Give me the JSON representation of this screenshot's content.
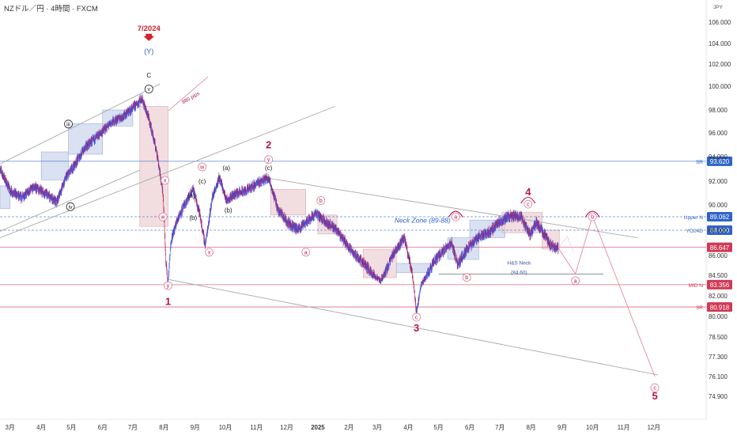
{
  "header": {
    "title": "NZドル／円 · 4時間 · FXCM",
    "currency": "JPY"
  },
  "colors": {
    "wave_red": "#b5164e",
    "pink": "#e07a96",
    "blue_label": "#2e64c8",
    "price_tag_red": "#d03a55",
    "candle_up": "#2962ff",
    "candle_down": "#b5164e",
    "box_blue": "#c9d4ec",
    "box_pink": "#ecd0d3",
    "trend_grey": "#a8a8a8",
    "black": "#222222"
  },
  "chart_data": {
    "type": "candlestick",
    "title": "NZドル／円 · 4時間 · FXCM",
    "currency": "JPY",
    "xaxis": {
      "tick_labels": [
        "3月",
        "4月",
        "5月",
        "6月",
        "7月",
        "8月",
        "9月",
        "10月",
        "11月",
        "12月",
        "2025",
        "2月",
        "3月",
        "4月",
        "5月",
        "6月",
        "7月",
        "8月",
        "9月",
        "10月",
        "11月",
        "12月"
      ],
      "range": [
        "2024-02-20",
        "2025-12-31"
      ]
    },
    "yaxis": {
      "ticks": [
        106.0,
        104.0,
        102.0,
        100.0,
        98.0,
        96.0,
        94.0,
        92.0,
        90.0,
        88.0,
        86.0,
        84.5,
        82.0,
        80.0,
        78.5,
        77.3,
        76.1,
        74.9
      ],
      "tick_labels": [
        "106.000",
        "104.000",
        "102.000",
        "100.000",
        "98.000",
        "96.000",
        "94.000",
        "92.000",
        "90.000",
        "88.000",
        "86.000",
        "84.500",
        "82.000",
        "80.000",
        "78.500",
        "77.300",
        "76.100",
        "74.900"
      ],
      "range": [
        74.3,
        107.2
      ]
    },
    "price_path": [
      [
        "2024-02-20",
        93.0
      ],
      [
        "2024-03-01",
        91.2
      ],
      [
        "2024-03-12",
        90.6
      ],
      [
        "2024-03-25",
        91.5
      ],
      [
        "2024-04-05",
        91.0
      ],
      [
        "2024-04-16",
        90.2
      ],
      [
        "2024-04-25",
        92.2
      ],
      [
        "2024-05-03",
        93.2
      ],
      [
        "2024-05-15",
        94.8
      ],
      [
        "2024-05-28",
        95.8
      ],
      [
        "2024-06-10",
        96.9
      ],
      [
        "2024-06-22",
        97.5
      ],
      [
        "2024-07-03",
        98.3
      ],
      [
        "2024-07-10",
        99.0
      ],
      [
        "2024-07-17",
        97.2
      ],
      [
        "2024-07-25",
        94.3
      ],
      [
        "2024-07-31",
        91.0
      ],
      [
        "2024-08-03",
        85.5
      ],
      [
        "2024-08-05",
        83.8
      ],
      [
        "2024-08-08",
        87.2
      ],
      [
        "2024-08-15",
        89.0
      ],
      [
        "2024-08-23",
        90.2
      ],
      [
        "2024-08-30",
        91.3
      ],
      [
        "2024-09-05",
        89.5
      ],
      [
        "2024-09-11",
        86.8
      ],
      [
        "2024-09-18",
        90.6
      ],
      [
        "2024-09-25",
        92.3
      ],
      [
        "2024-10-02",
        90.4
      ],
      [
        "2024-10-10",
        90.9
      ],
      [
        "2024-10-22",
        91.2
      ],
      [
        "2024-11-03",
        91.9
      ],
      [
        "2024-11-13",
        92.3
      ],
      [
        "2024-11-22",
        89.7
      ],
      [
        "2024-12-02",
        88.6
      ],
      [
        "2024-12-12",
        88.0
      ],
      [
        "2024-12-22",
        88.8
      ],
      [
        "2024-12-30",
        89.3
      ],
      [
        "2025-01-10",
        88.6
      ],
      [
        "2025-01-20",
        88.0
      ],
      [
        "2025-02-03",
        86.4
      ],
      [
        "2025-02-18",
        85.2
      ],
      [
        "2025-03-04",
        83.8
      ],
      [
        "2025-03-18",
        86.3
      ],
      [
        "2025-03-28",
        87.4
      ],
      [
        "2025-04-05",
        84.5
      ],
      [
        "2025-04-09",
        80.2
      ],
      [
        "2025-04-14",
        83.5
      ],
      [
        "2025-04-25",
        85.4
      ],
      [
        "2025-05-06",
        86.4
      ],
      [
        "2025-05-14",
        87.0
      ],
      [
        "2025-05-20",
        85.3
      ],
      [
        "2025-05-29",
        86.5
      ],
      [
        "2025-06-09",
        87.4
      ],
      [
        "2025-06-20",
        87.8
      ],
      [
        "2025-06-30",
        88.6
      ],
      [
        "2025-07-10",
        89.1
      ],
      [
        "2025-07-22",
        89.1
      ],
      [
        "2025-07-31",
        87.6
      ],
      [
        "2025-08-06",
        88.6
      ],
      [
        "2025-08-13",
        87.8
      ],
      [
        "2025-08-20",
        86.8
      ],
      [
        "2025-08-28",
        86.6
      ]
    ],
    "projection": [
      [
        "2025-08-28",
        86.6
      ],
      [
        "2025-09-14",
        84.6
      ],
      [
        "2025-10-01",
        89.1
      ],
      [
        "2025-12-02",
        76.1
      ]
    ],
    "pink_ghost": [
      [
        "2025-08-28",
        86.6
      ],
      [
        "2025-09-06",
        87.5
      ],
      [
        "2025-09-12",
        86.3
      ]
    ],
    "horizontal_levels": [
      {
        "name": "SR",
        "value": 93.62,
        "label": "93.620",
        "style": "solid",
        "color": "#2e64c8"
      },
      {
        "name": "Upper N",
        "value": 89.062,
        "label": "89.062",
        "style": "dashed",
        "color": "#2e64c8"
      },
      {
        "name": "YO24D",
        "value": 88.0,
        "label": "88.000",
        "style": "dashed",
        "color": "#2e64c8"
      },
      {
        "name": "current",
        "value": 86.647,
        "label": "86.647",
        "style": "solid",
        "color": "#d03a55"
      },
      {
        "name": "MID N",
        "value": 83.356,
        "label": "83.356",
        "style": "solid",
        "color": "#d03a55"
      },
      {
        "name": "SR",
        "value": 80.918,
        "label": "80.918",
        "style": "solid",
        "color": "#d03a55"
      }
    ],
    "short_levels": [
      {
        "name": "H&S Neck",
        "value": 84.6,
        "from": "2025-05-01",
        "to": "2025-10-12"
      }
    ],
    "trendlines": [
      {
        "from": [
          "2024-02-20",
          93.4
        ],
        "to": [
          "2024-07-28",
          100.2
        ],
        "color": "#a8a8a8"
      },
      {
        "from": [
          "2024-02-20",
          87.9
        ],
        "to": [
          "2024-07-08",
          92.9
        ],
        "color": "#a8a8a8"
      },
      {
        "from": [
          "2024-02-20",
          87.4
        ],
        "to": [
          "2025-01-18",
          98.3
        ],
        "color": "#a8a8a8"
      },
      {
        "from": [
          "2024-11-08",
          92.3
        ],
        "to": [
          "2025-11-15",
          87.4
        ],
        "color": "#a8a8a8"
      },
      {
        "from": [
          "2024-08-05",
          84.0
        ],
        "to": [
          "2025-12-05",
          76.2
        ],
        "color": "#a8a8a8"
      }
    ],
    "boxes": [
      {
        "x0": "2024-02-20",
        "x1": "2024-03-01",
        "y0": 89.7,
        "y1": 91.6,
        "color": "blue"
      },
      {
        "x0": "2024-04-01",
        "x1": "2024-04-28",
        "y0": 92.1,
        "y1": 94.4,
        "color": "blue"
      },
      {
        "x0": "2024-04-28",
        "x1": "2024-06-01",
        "y0": 94.2,
        "y1": 96.8,
        "color": "blue"
      },
      {
        "x0": "2024-06-01",
        "x1": "2024-07-01",
        "y0": 96.6,
        "y1": 98.0,
        "color": "blue"
      },
      {
        "x0": "2024-07-08",
        "x1": "2024-08-05",
        "y0": 88.3,
        "y1": 98.3,
        "color": "pink"
      },
      {
        "x0": "2024-11-15",
        "x1": "2024-12-20",
        "y0": 89.2,
        "y1": 91.3,
        "color": "pink"
      },
      {
        "x0": "2025-01-01",
        "x1": "2025-01-20",
        "y0": 87.7,
        "y1": 89.2,
        "color": "pink"
      },
      {
        "x0": "2025-02-15",
        "x1": "2025-03-20",
        "y0": 84.2,
        "y1": 86.5,
        "color": "pink"
      },
      {
        "x0": "2025-03-20",
        "x1": "2025-04-25",
        "y0": 84.7,
        "y1": 85.4,
        "color": "blue"
      },
      {
        "x0": "2025-05-10",
        "x1": "2025-06-10",
        "y0": 85.7,
        "y1": 87.4,
        "color": "blue"
      },
      {
        "x0": "2025-06-01",
        "x1": "2025-07-06",
        "y0": 87.4,
        "y1": 88.8,
        "color": "blue"
      },
      {
        "x0": "2025-07-03",
        "x1": "2025-08-12",
        "y0": 87.8,
        "y1": 89.4,
        "color": "pink"
      },
      {
        "x0": "2025-08-12",
        "x1": "2025-08-29",
        "y0": 86.5,
        "y1": 88.0,
        "color": "pink"
      }
    ],
    "wave_labels": [
      {
        "text": "1",
        "at": [
          "2024-08-05",
          81.1
        ],
        "style": "big"
      },
      {
        "text": "2",
        "at": [
          "2024-11-13",
          94.7
        ],
        "style": "big"
      },
      {
        "text": "3",
        "at": [
          "2025-04-09",
          78.9
        ],
        "style": "big"
      },
      {
        "text": "4",
        "at": [
          "2025-07-29",
          90.8
        ],
        "style": "big"
      },
      {
        "text": "5",
        "at": [
          "2025-12-02",
          74.7
        ],
        "style": "big"
      },
      {
        "text": "7/2024",
        "at": [
          "2024-07-17",
          105.2
        ],
        "style": "date"
      },
      {
        "text": "(Y)",
        "at": [
          "2024-07-17",
          103.0
        ],
        "style": "blue"
      },
      {
        "text": "C",
        "at": [
          "2024-07-17",
          100.8
        ],
        "style": "black"
      },
      {
        "text": "v",
        "at": [
          "2024-07-17",
          99.6
        ],
        "style": "circle-black"
      },
      {
        "text": "iii",
        "at": [
          "2024-04-28",
          96.6
        ],
        "style": "circle-black"
      },
      {
        "text": "iv",
        "at": [
          "2024-04-30",
          89.7
        ],
        "style": "circle-black"
      },
      {
        "text": "x",
        "at": [
          "2024-08-02",
          91.9
        ],
        "style": "circle-red"
      },
      {
        "text": "w",
        "at": [
          "2024-07-31",
          88.9
        ],
        "style": "circle-red"
      },
      {
        "text": "y",
        "at": [
          "2024-08-05",
          83.0
        ],
        "style": "circle-red"
      },
      {
        "text": "w",
        "at": [
          "2024-09-08",
          93.0
        ],
        "style": "circle-red"
      },
      {
        "text": "x",
        "at": [
          "2024-09-15",
          86.1
        ],
        "style": "circle-red"
      },
      {
        "text": "y",
        "at": [
          "2024-11-13",
          93.6
        ],
        "style": "circle-red"
      },
      {
        "text": "(a)",
        "at": [
          "2024-08-28",
          90.6
        ],
        "style": "black"
      },
      {
        "text": "(b)",
        "at": [
          "2024-08-30",
          88.8
        ],
        "style": "black"
      },
      {
        "text": "(c)",
        "at": [
          "2024-09-08",
          91.8
        ],
        "style": "black"
      },
      {
        "text": "(a)",
        "at": [
          "2024-10-02",
          92.9
        ],
        "style": "black"
      },
      {
        "text": "(b)",
        "at": [
          "2024-10-04",
          89.4
        ],
        "style": "black"
      },
      {
        "text": "(c)",
        "at": [
          "2024-11-13",
          92.9
        ],
        "style": "black"
      },
      {
        "text": "b",
        "at": [
          "2025-01-04",
          90.2
        ],
        "style": "circle-red"
      },
      {
        "text": "a",
        "at": [
          "2024-12-20",
          86.1
        ],
        "style": "circle-red"
      },
      {
        "text": "c",
        "at": [
          "2025-04-09",
          79.8
        ],
        "style": "circle-red"
      },
      {
        "text": "a",
        "at": [
          "2025-05-18",
          88.9
        ],
        "style": "circle-red"
      },
      {
        "text": "b",
        "at": [
          "2025-05-29",
          84.0
        ],
        "style": "circle-red"
      },
      {
        "text": "c",
        "at": [
          "2025-07-29",
          89.9
        ],
        "style": "circle-red"
      },
      {
        "text": "a",
        "at": [
          "2025-09-14",
          83.6
        ],
        "style": "circle-red"
      },
      {
        "text": "b",
        "at": [
          "2025-10-01",
          88.9
        ],
        "style": "circle-red"
      },
      {
        "text": "c",
        "at": [
          "2025-12-02",
          75.3
        ],
        "style": "circle-red"
      }
    ],
    "arcs": [
      {
        "at": [
          "2025-05-18",
          88.9
        ]
      },
      {
        "at": [
          "2025-07-29",
          90.0
        ]
      },
      {
        "at": [
          "2025-10-01",
          88.9
        ]
      }
    ],
    "annotations": [
      {
        "text": "880 pips",
        "at": [
          "2024-08-20",
          98.5
        ],
        "style": "rotated"
      },
      {
        "text": "Neck Zone (89-88)",
        "at": [
          "2025-04-15",
          88.6
        ],
        "style": "blue-italic"
      },
      {
        "text": "H&S Neck",
        "at": [
          "2025-07-20",
          85.3
        ],
        "style": "blue-small"
      },
      {
        "text": "(84.60)",
        "at": [
          "2025-07-20",
          84.6
        ],
        "style": "blue-small"
      }
    ]
  }
}
